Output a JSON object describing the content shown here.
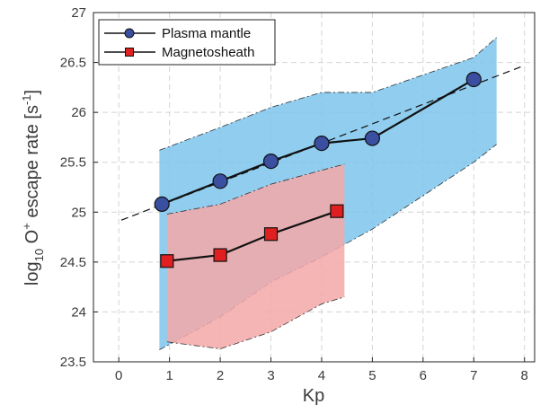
{
  "chart_data": {
    "type": "line",
    "xlabel": "Kp",
    "ylabel": {
      "prefix": "log",
      "sub": "10",
      "mid": " O",
      "sup": "+",
      "suffix": " escape rate [s",
      "unit_sup": "-1",
      "close": "]"
    },
    "xlim": [
      -0.5,
      8.2
    ],
    "ylim": [
      23.5,
      27
    ],
    "xticks": [
      0,
      1,
      2,
      3,
      4,
      5,
      6,
      7,
      8
    ],
    "yticks": [
      23.5,
      24,
      24.5,
      25,
      25.5,
      26,
      26.5,
      27
    ],
    "xtick_labels": [
      "0",
      "1",
      "2",
      "3",
      "4",
      "5",
      "6",
      "7",
      "8"
    ],
    "ytick_labels": [
      "23.5",
      "24",
      "24.5",
      "25",
      "25.5",
      "26",
      "26.5",
      "27"
    ],
    "grid": true,
    "legend_position": "top-left",
    "series": [
      {
        "name": "Plasma mantle",
        "marker": "circle",
        "color": "#3a4fa0",
        "x": [
          0.85,
          2.0,
          3.0,
          4.0,
          5.0,
          7.0
        ],
        "y": [
          25.08,
          25.31,
          25.51,
          25.69,
          25.74,
          26.33
        ]
      },
      {
        "name": "Magnetosheath",
        "marker": "square",
        "color": "#e02020",
        "x": [
          0.95,
          2.0,
          3.0,
          4.3
        ],
        "y": [
          24.51,
          24.57,
          24.78,
          25.01
        ]
      }
    ],
    "bands": [
      {
        "series": "Plasma mantle",
        "color": "#7cc4ec",
        "x": [
          0.8,
          2.0,
          3.0,
          4.0,
          5.0,
          7.0,
          7.45
        ],
        "upper": [
          25.62,
          25.85,
          26.05,
          26.2,
          26.2,
          26.55,
          26.75
        ],
        "lower": [
          23.62,
          23.95,
          24.3,
          24.55,
          24.83,
          25.5,
          25.68
        ]
      },
      {
        "series": "Magnetosheath",
        "color": "#f4a8a8",
        "x": [
          0.95,
          2.0,
          3.0,
          4.0,
          4.45
        ],
        "upper": [
          24.98,
          25.08,
          25.28,
          25.42,
          25.48
        ],
        "lower": [
          23.7,
          23.63,
          23.8,
          24.08,
          24.15
        ]
      }
    ],
    "fit_line": {
      "style": "dashed",
      "color": "#111111",
      "x": [
        0.05,
        8.0
      ],
      "y": [
        24.92,
        26.47
      ]
    }
  }
}
